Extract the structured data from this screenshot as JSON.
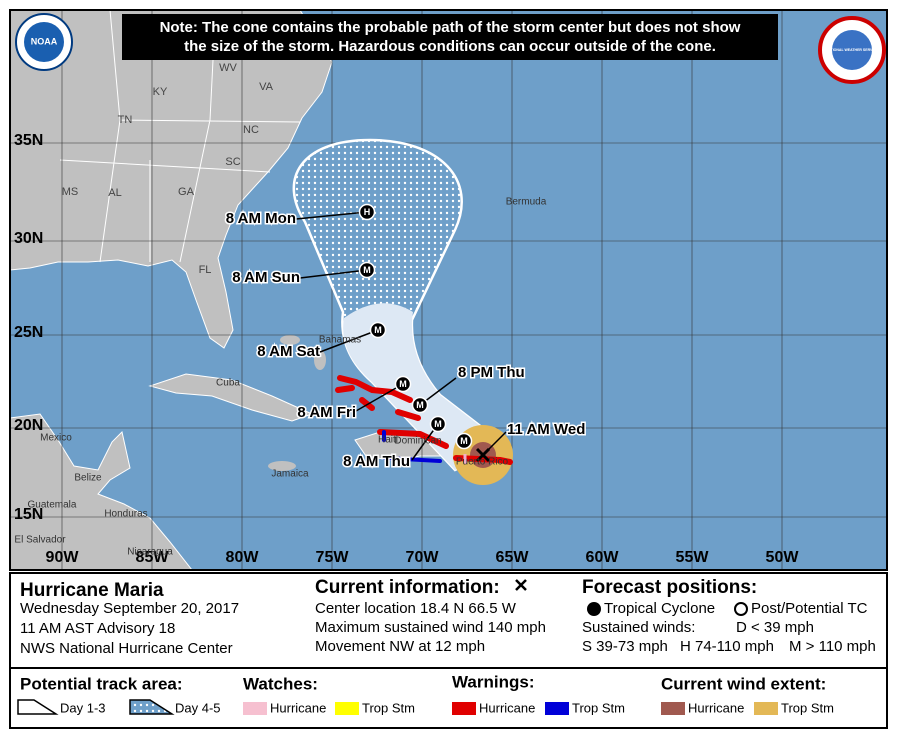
{
  "note": {
    "line1": "Note: The cone contains the probable path of the storm center but does not show",
    "line2": "the size of the storm. Hazardous conditions can occur outside of the cone."
  },
  "logos": {
    "noaa": "NOAA",
    "nws": "NATIONAL WEATHER SERVICE"
  },
  "map": {
    "lat_labels": [
      "35N",
      "30N",
      "25N",
      "20N",
      "15N"
    ],
    "lon_labels": [
      "90W",
      "85W",
      "80W",
      "75W",
      "70W",
      "65W",
      "60W",
      "55W",
      "50W"
    ],
    "states": [
      "WV",
      "VA",
      "KY",
      "TN",
      "NC",
      "SC",
      "MS",
      "AL",
      "GA",
      "FL"
    ],
    "places": [
      "Bermuda",
      "Bahamas",
      "Cuba",
      "Mexico",
      "Belize",
      "Guatemala",
      "Honduras",
      "El Salvador",
      "Nicaragua",
      "Jamaica",
      "Haiti",
      "Dominican",
      "Puerto Rico"
    ],
    "forecast_labels": [
      "8 AM Mon",
      "8 AM Sun",
      "8 AM Sat",
      "8 PM Thu",
      "8 AM Fri",
      "8 AM Thu",
      "11 AM Wed"
    ],
    "markers": [
      "H",
      "M",
      "M",
      "M",
      "M",
      "M",
      "M"
    ]
  },
  "storm": {
    "name": "Hurricane Maria",
    "date": "Wednesday September 20, 2017",
    "advisory": "11 AM AST Advisory 18",
    "center": "NWS National Hurricane Center"
  },
  "current": {
    "title": "Current information:",
    "location": "Center location 18.4 N 66.5 W",
    "wind": "Maximum sustained wind 140 mph",
    "movement": "Movement NW at 12 mph"
  },
  "forecast": {
    "title": "Forecast positions:",
    "tc": "Tropical Cyclone",
    "ptc": "Post/Potential TC",
    "winds": "Sustained winds:",
    "d": "D < 39 mph",
    "s": "S 39-73 mph",
    "h": "H 74-110 mph",
    "m": "M > 110 mph"
  },
  "legend": {
    "track": {
      "title": "Potential track area:",
      "day13": "Day 1-3",
      "day45": "Day 4-5"
    },
    "watches": {
      "title": "Watches:",
      "hurricane": "Hurricane",
      "trop_stm": "Trop Stm"
    },
    "warnings": {
      "title": "Warnings:",
      "hurricane": "Hurricane",
      "trop_stm": "Trop Stm"
    },
    "wind_extent": {
      "title": "Current wind extent:",
      "hurricane": "Hurricane",
      "trop_stm": "Trop Stm"
    }
  }
}
